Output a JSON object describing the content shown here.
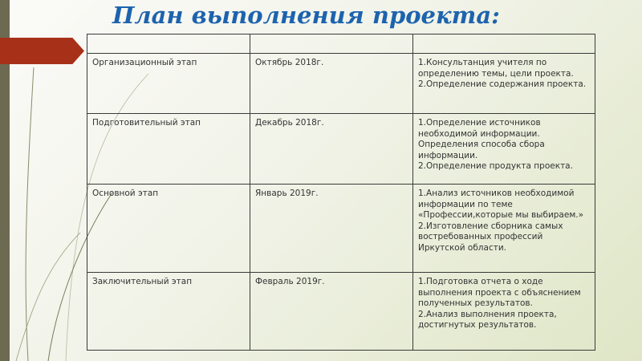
{
  "slide": {
    "title": "План выполнения проекта:",
    "accent_color": "#a63118",
    "title_color": "#1d63ae"
  },
  "table": {
    "header": [
      "",
      "",
      ""
    ],
    "rows": [
      {
        "stage": "Организационный этап",
        "date": "Октябрь 2018г.",
        "tasks": [
          "1.Консультанция учителя по определению темы, цели проекта.",
          "2.Определение содержания проекта."
        ]
      },
      {
        "stage": "Подготовительный этап",
        "date": "Декабрь 2018г.",
        "tasks": [
          "1.Определение источников необходимой информации. Определения способа сбора информации.",
          "2.Определение продукта проекта."
        ]
      },
      {
        "stage": "Основной этап",
        "date": "Январь 2019г.",
        "tasks": [
          "1.Анализ источников необходимой информации по теме «Профессии,которые мы выбираем.»",
          "2.Изготовление сборника самых востребованных профессий Иркутской области."
        ]
      },
      {
        "stage": "Заключительный этап",
        "date": "Февраль 2019г.",
        "tasks": [
          "1.Подготовка отчета о ходе выполнения проекта с объяснением полученных результатов.",
          "2.Анализ выполнения проекта, достигнутых результатов."
        ]
      }
    ]
  }
}
